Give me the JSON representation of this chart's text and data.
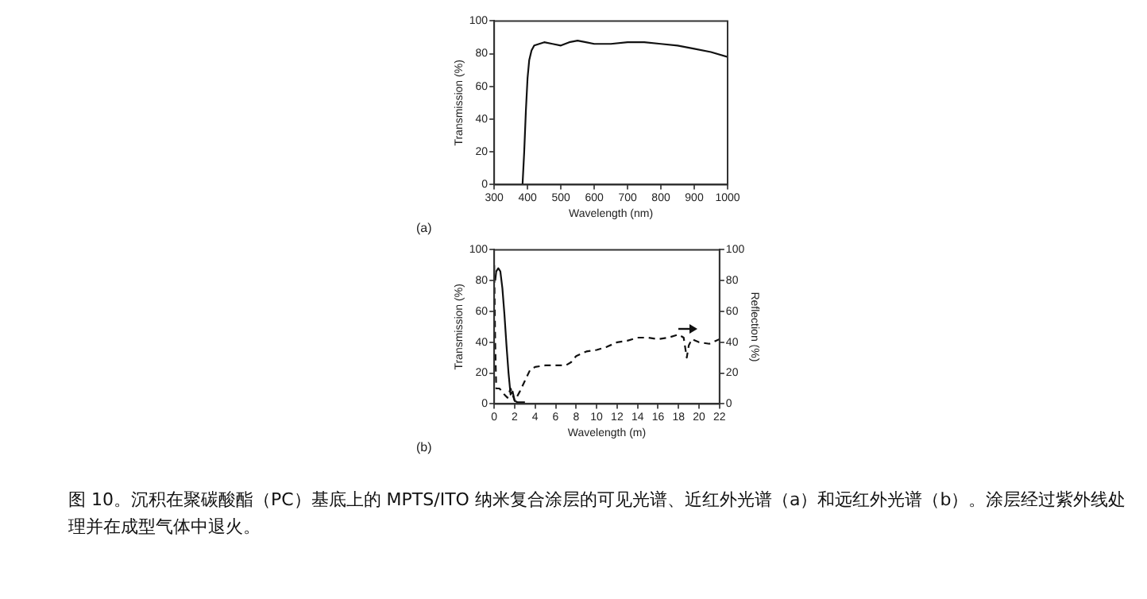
{
  "chart_data": [
    {
      "type": "line",
      "xlabel": "Wavelength (nm)",
      "ylabel": "Transmission (%)",
      "xlim": [
        300,
        1000
      ],
      "xticks": [
        300,
        400,
        500,
        600,
        700,
        800,
        900,
        1000
      ],
      "ylim": [
        0,
        100
      ],
      "yticks": [
        0,
        20,
        40,
        60,
        80,
        100
      ],
      "grid": false,
      "legend": false,
      "marker": "none",
      "annotations": [
        "(a)"
      ],
      "series": [
        {
          "color": "#111111",
          "line_style": "solid",
          "x": [
            385,
            390,
            395,
            400,
            405,
            412,
            420,
            435,
            450,
            475,
            500,
            525,
            550,
            575,
            600,
            625,
            650,
            700,
            750,
            800,
            850,
            900,
            950,
            1000
          ],
          "values": [
            0,
            20,
            45,
            65,
            76,
            82,
            85,
            86,
            87,
            86,
            85,
            87,
            88,
            87,
            86,
            86,
            86,
            87,
            87,
            86,
            85,
            83,
            81,
            78
          ]
        }
      ]
    },
    {
      "type": "line",
      "xlabel": "Wavelength (m)",
      "ylabel": "Transmission (%)",
      "y2label": "Reflection (%)",
      "xlim": [
        0,
        22
      ],
      "xticks": [
        0,
        2,
        4,
        6,
        8,
        10,
        12,
        14,
        16,
        18,
        20,
        22
      ],
      "ylim": [
        0,
        100
      ],
      "yticks": [
        0,
        20,
        40,
        60,
        80,
        100
      ],
      "y2lim": [
        0,
        100
      ],
      "y2ticks": [
        0,
        20,
        40,
        60,
        80,
        100
      ],
      "grid": false,
      "legend": false,
      "marker": "none",
      "annotations": [
        "(b)",
        "图 10。沉积在聚碳酸酯（PC）基底上的 MPTS/ITO 纳米复合涂层的可见光谱、近红外光谱（a）和远红外光谱（b）。涂层经过紫外线处理并在成型气体中退火。"
      ],
      "series": [
        {
          "color": "#111111",
          "line_style": "solid",
          "x": [
            0.1,
            0.2,
            0.4,
            0.6,
            0.8,
            1.0,
            1.2,
            1.4,
            1.6,
            1.8,
            2.0,
            2.3,
            2.6,
            3.0
          ],
          "values": [
            80,
            86,
            88,
            86,
            75,
            58,
            38,
            20,
            6,
            8,
            2,
            1,
            1,
            1
          ]
        },
        {
          "color": "#111111",
          "line_style": "dashed",
          "axis": "y2",
          "x": [
            0,
            0.1,
            0.2,
            0.5,
            0.8,
            1.0,
            1.3,
            1.6,
            1.8,
            2.0,
            2.5,
            3.0,
            3.5,
            4.0,
            5,
            6,
            7,
            7.5,
            8,
            9,
            10,
            11,
            12,
            13,
            14,
            15,
            16,
            17,
            18,
            18.5,
            18.8,
            19,
            19.3,
            20,
            21,
            22
          ],
          "values": [
            90,
            40,
            10,
            10,
            8,
            6,
            4,
            10,
            6,
            2,
            8,
            15,
            22,
            24,
            25,
            25,
            25,
            27,
            31,
            34,
            35,
            37,
            40,
            41,
            43,
            43,
            42,
            43,
            45,
            43,
            30,
            38,
            42,
            40,
            39,
            42
          ]
        }
      ]
    }
  ]
}
